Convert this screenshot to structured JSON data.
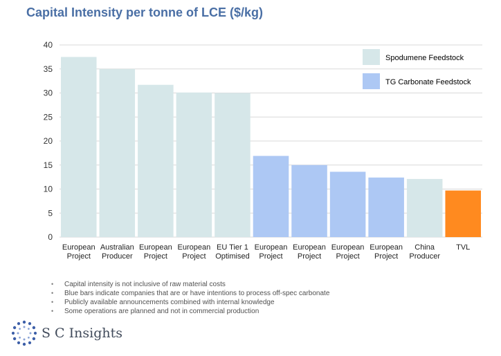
{
  "page": {
    "title": "Capital Intensity per tonne of LCE ($/kg)",
    "notes": [
      "Capital intensity is not inclusive of raw material costs",
      "Blue bars indicate companies that are or have intentions to process off-spec carbonate",
      "Publicly available announcements combined with internal knowledge",
      "Some operations are planned and not in commercial production"
    ],
    "logo_text": "S C Insights"
  },
  "chart_data": {
    "type": "bar",
    "title": "Capital Intensity per tonne of LCE ($/kg)",
    "xlabel": "",
    "ylabel": "",
    "ylim": [
      0,
      40
    ],
    "yticks": [
      0,
      5,
      10,
      15,
      20,
      25,
      30,
      35,
      40
    ],
    "grid": true,
    "legend_position": "top-right",
    "categories": [
      [
        "European",
        "Project"
      ],
      [
        "Australian",
        "Producer"
      ],
      [
        "European",
        "Project"
      ],
      [
        "European",
        "Project"
      ],
      [
        "EU Tier 1",
        "Optimised"
      ],
      [
        "European",
        "Project"
      ],
      [
        "European",
        "Project"
      ],
      [
        "European",
        "Project"
      ],
      [
        "European",
        "Project"
      ],
      [
        "China",
        "Producer"
      ],
      [
        "TVL"
      ]
    ],
    "values": [
      37.5,
      35.0,
      31.7,
      30.1,
      30.0,
      16.9,
      15.0,
      13.6,
      12.4,
      12.1,
      9.7
    ],
    "groups": [
      "spodumene",
      "spodumene",
      "spodumene",
      "spodumene",
      "spodumene",
      "carbonate",
      "carbonate",
      "carbonate",
      "carbonate",
      "spodumene",
      "tvl"
    ],
    "legend": [
      {
        "key": "spodumene",
        "label": "Spodumene Feedstock"
      },
      {
        "key": "carbonate",
        "label": "TG Carbonate Feedstock"
      }
    ],
    "colors": {
      "spodumene": "#d6e7e9",
      "carbonate": "#adc8f4",
      "tvl": "#ff8a1f",
      "grid": "#d9d9d9",
      "title": "#4a6fa5"
    }
  }
}
